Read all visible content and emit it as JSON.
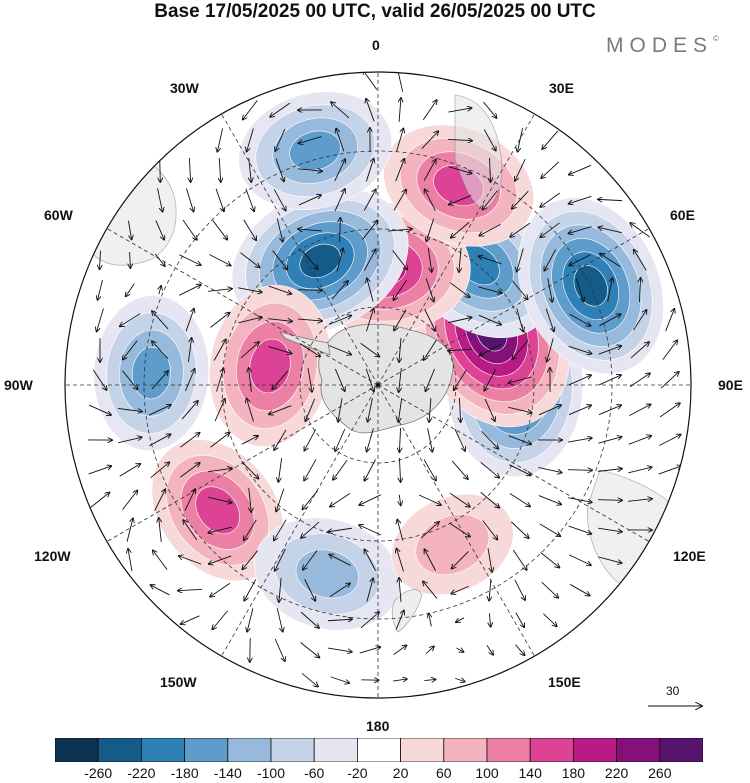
{
  "title": "Base 17/05/2025 00 UTC, valid 26/05/2025 00 UTC",
  "brand": "MODES",
  "brand_mark": "©",
  "lon_labels": {
    "top": "0",
    "top_right": "30E",
    "right_upper": "60E",
    "right": "90E",
    "right_lower": "120E",
    "bottom_right": "150E",
    "bottom": "180",
    "bottom_left": "150W",
    "left_lower": "120W",
    "left": "90W",
    "left_upper": "60W",
    "top_left": "30W"
  },
  "reference_vector": {
    "value": "30"
  },
  "colorbar": {
    "ticks": [
      "-260",
      "-220",
      "-180",
      "-140",
      "-100",
      "-60",
      "-20",
      "20",
      "60",
      "100",
      "140",
      "180",
      "220",
      "260"
    ],
    "colors": [
      "#0b3350",
      "#155b8a",
      "#2f80b7",
      "#5d9ccb",
      "#97b9db",
      "#c4d3e8",
      "#e6e6f2",
      "#ffffff",
      "#f8d9da",
      "#f3b3bf",
      "#ec80a4",
      "#dc4394",
      "#b81b85",
      "#85107a",
      "#56146c"
    ]
  },
  "map_style": {
    "land_color": "#e4e4e4",
    "coast_color": "#7a7a7a",
    "grid_color": "#333333",
    "arrow_color": "#111111"
  },
  "anomaly_field": [
    {
      "name": "east-low-90E",
      "value": -220,
      "lon": 90,
      "lat": -55
    },
    {
      "name": "east-high-110E",
      "value": 260,
      "lon": 115,
      "lat": -58
    },
    {
      "name": "low-140E",
      "value": -180,
      "lon": 140,
      "lat": -50
    },
    {
      "name": "low-120E-edge",
      "value": -220,
      "lon": 115,
      "lat": -30
    },
    {
      "name": "high-180",
      "value": 200,
      "lon": 178,
      "lat": -60
    },
    {
      "name": "low-160W",
      "value": -220,
      "lon": -155,
      "lat": -55
    },
    {
      "name": "high-100W",
      "value": 160,
      "lon": -100,
      "lat": -62
    },
    {
      "name": "low-90W-edge",
      "value": -140,
      "lon": -93,
      "lat": -32
    },
    {
      "name": "high-60W",
      "value": 140,
      "lon": -52,
      "lat": -38
    },
    {
      "name": "low-20W",
      "value": -120,
      "lon": -15,
      "lat": -40
    },
    {
      "name": "high-150E-south",
      "value": 140,
      "lon": 158,
      "lat": -35
    },
    {
      "name": "low-165W-edge",
      "value": -140,
      "lon": -165,
      "lat": -28
    },
    {
      "name": "high-20E",
      "value": 60,
      "lon": 25,
      "lat": -45
    }
  ]
}
